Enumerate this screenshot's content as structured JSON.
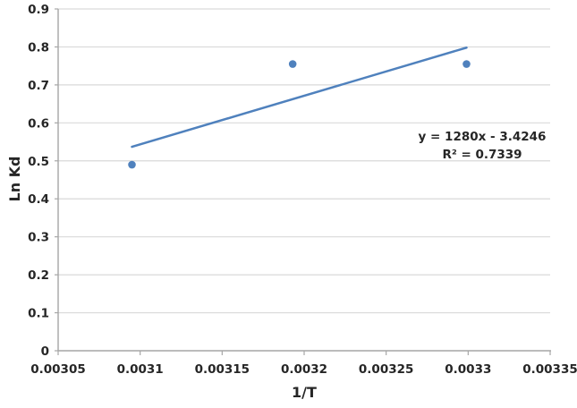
{
  "chart_data": {
    "type": "scatter",
    "title": "",
    "xlabel": "1/T",
    "ylabel": "Ln Kd",
    "x": [
      0.003095,
      0.003193,
      0.003299
    ],
    "y": [
      0.49,
      0.755,
      0.755
    ],
    "trendline": {
      "slope": 1280,
      "intercept": -3.4246,
      "x_start": 0.003095,
      "x_end": 0.003299
    },
    "equation_label": "y = 1280x - 3.4246",
    "r2_label": "R² = 0.7339",
    "xlim": [
      0.00305,
      0.00335
    ],
    "ylim": [
      0,
      0.9
    ],
    "x_ticks": [
      0.00305,
      0.0031,
      0.00315,
      0.0032,
      0.00325,
      0.0033,
      0.00335
    ],
    "x_tick_labels": [
      "0.00305",
      "0.0031",
      "0.00315",
      "0.0032",
      "0.00325",
      "0.0033",
      "0.00335"
    ],
    "y_ticks": [
      0,
      0.1,
      0.2,
      0.3,
      0.4,
      0.5,
      0.6,
      0.7,
      0.8,
      0.9
    ],
    "y_tick_labels": [
      "0",
      "0.1",
      "0.2",
      "0.3",
      "0.4",
      "0.5",
      "0.6",
      "0.7",
      "0.8",
      "0.9"
    ],
    "grid": "horizontal-only",
    "legend": "none",
    "colors": {
      "marker": "#4F81BD",
      "trendline": "#4F81BD",
      "gridline": "#D9D9D9",
      "axis": "#A6A6A6",
      "text": "#262626"
    }
  }
}
